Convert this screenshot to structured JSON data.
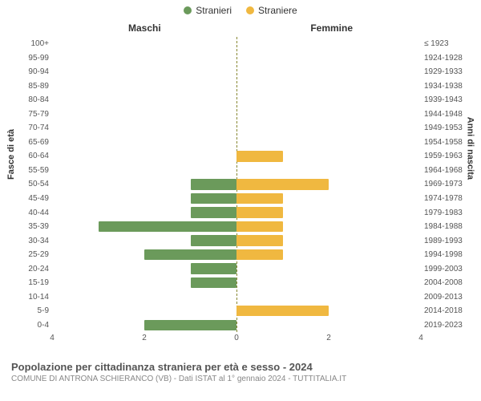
{
  "legend": {
    "male": {
      "label": "Stranieri",
      "color": "#6b9a5b"
    },
    "female": {
      "label": "Straniere",
      "color": "#f0b840"
    }
  },
  "column_headers": {
    "left": "Maschi",
    "right": "Femmine"
  },
  "yaxis": {
    "left_label": "Fasce di età",
    "right_label": "Anni di nascita"
  },
  "xaxis": {
    "max": 4,
    "ticks_left": [
      4,
      2,
      0
    ],
    "ticks_right": [
      0,
      2,
      4
    ]
  },
  "colors": {
    "male_bar": "#6b9a5b",
    "female_bar": "#f0b840",
    "background": "#ffffff",
    "grid": "#e8e8e8",
    "center_dash": "#888833",
    "tick_text": "#555555"
  },
  "typography": {
    "tick_fontsize": 10,
    "header_fontsize": 12,
    "title_fontsize": 13
  },
  "rows": [
    {
      "age": "100+",
      "birth": "≤ 1923",
      "m": 0,
      "f": 0
    },
    {
      "age": "95-99",
      "birth": "1924-1928",
      "m": 0,
      "f": 0
    },
    {
      "age": "90-94",
      "birth": "1929-1933",
      "m": 0,
      "f": 0
    },
    {
      "age": "85-89",
      "birth": "1934-1938",
      "m": 0,
      "f": 0
    },
    {
      "age": "80-84",
      "birth": "1939-1943",
      "m": 0,
      "f": 0
    },
    {
      "age": "75-79",
      "birth": "1944-1948",
      "m": 0,
      "f": 0
    },
    {
      "age": "70-74",
      "birth": "1949-1953",
      "m": 0,
      "f": 0
    },
    {
      "age": "65-69",
      "birth": "1954-1958",
      "m": 0,
      "f": 0
    },
    {
      "age": "60-64",
      "birth": "1959-1963",
      "m": 0,
      "f": 1
    },
    {
      "age": "55-59",
      "birth": "1964-1968",
      "m": 0,
      "f": 0
    },
    {
      "age": "50-54",
      "birth": "1969-1973",
      "m": 1,
      "f": 2
    },
    {
      "age": "45-49",
      "birth": "1974-1978",
      "m": 1,
      "f": 1
    },
    {
      "age": "40-44",
      "birth": "1979-1983",
      "m": 1,
      "f": 1
    },
    {
      "age": "35-39",
      "birth": "1984-1988",
      "m": 3,
      "f": 1
    },
    {
      "age": "30-34",
      "birth": "1989-1993",
      "m": 1,
      "f": 1
    },
    {
      "age": "25-29",
      "birth": "1994-1998",
      "m": 2,
      "f": 1
    },
    {
      "age": "20-24",
      "birth": "1999-2003",
      "m": 1,
      "f": 0
    },
    {
      "age": "15-19",
      "birth": "2004-2008",
      "m": 1,
      "f": 0
    },
    {
      "age": "10-14",
      "birth": "2009-2013",
      "m": 0,
      "f": 0
    },
    {
      "age": "5-9",
      "birth": "2014-2018",
      "m": 0,
      "f": 2
    },
    {
      "age": "0-4",
      "birth": "2019-2023",
      "m": 2,
      "f": 0
    }
  ],
  "footer": {
    "title": "Popolazione per cittadinanza straniera per età e sesso - 2024",
    "subtitle": "COMUNE DI ANTRONA SCHIERANCO (VB) - Dati ISTAT al 1° gennaio 2024 - TUTTITALIA.IT"
  }
}
